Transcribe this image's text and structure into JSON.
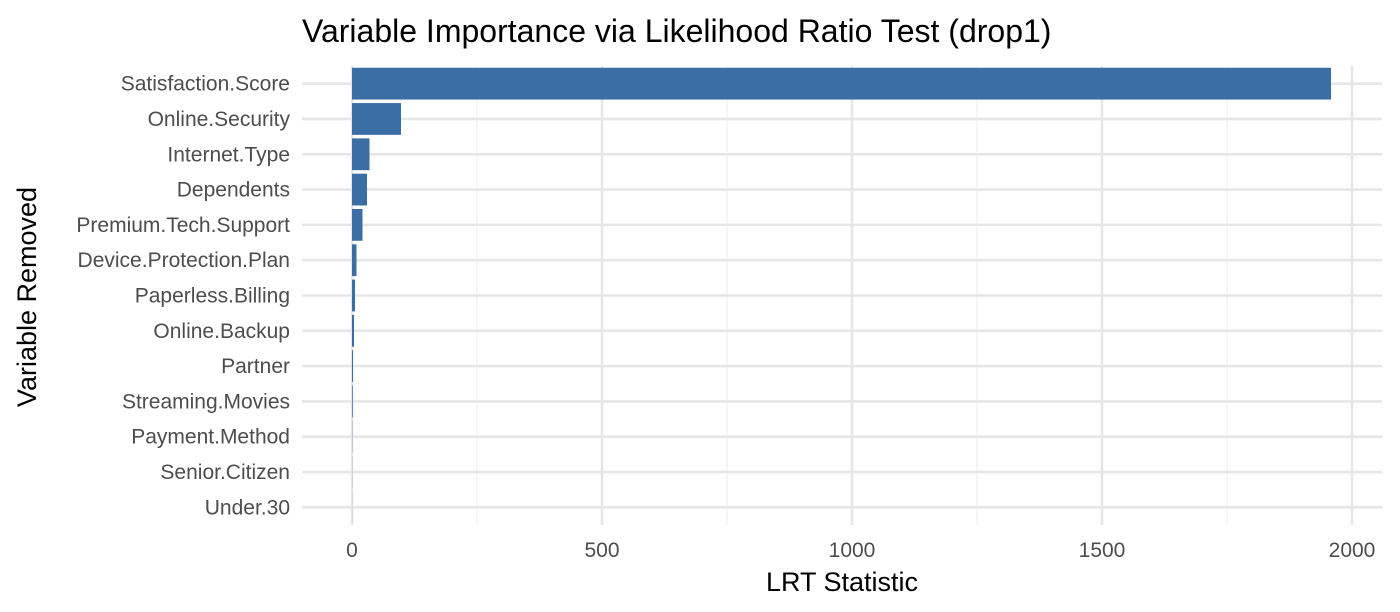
{
  "chart_data": {
    "type": "bar",
    "orientation": "horizontal",
    "title": "Variable Importance via Likelihood Ratio Test (drop1)",
    "xlabel": "LRT Statistic",
    "ylabel": "Variable Removed",
    "xlim": [
      -100,
      2060
    ],
    "x_ticks": [
      0,
      500,
      1000,
      1500,
      2000
    ],
    "x_tick_labels": [
      "0",
      "500",
      "1000",
      "1500",
      "2000"
    ],
    "x_minor_ticks": [
      250,
      750,
      1250,
      1750
    ],
    "grid": true,
    "bar_color": "#3a6ea5",
    "categories": [
      "Satisfaction.Score",
      "Online.Security",
      "Internet.Type",
      "Dependents",
      "Premium.Tech.Support",
      "Device.Protection.Plan",
      "Paperless.Billing",
      "Online.Backup",
      "Partner",
      "Streaming.Movies",
      "Payment.Method",
      "Senior.Citizen",
      "Under.30"
    ],
    "values": [
      1958,
      98,
      35,
      30,
      21,
      9,
      6,
      4,
      2,
      1.5,
      0.5,
      0.3,
      0.2
    ]
  }
}
